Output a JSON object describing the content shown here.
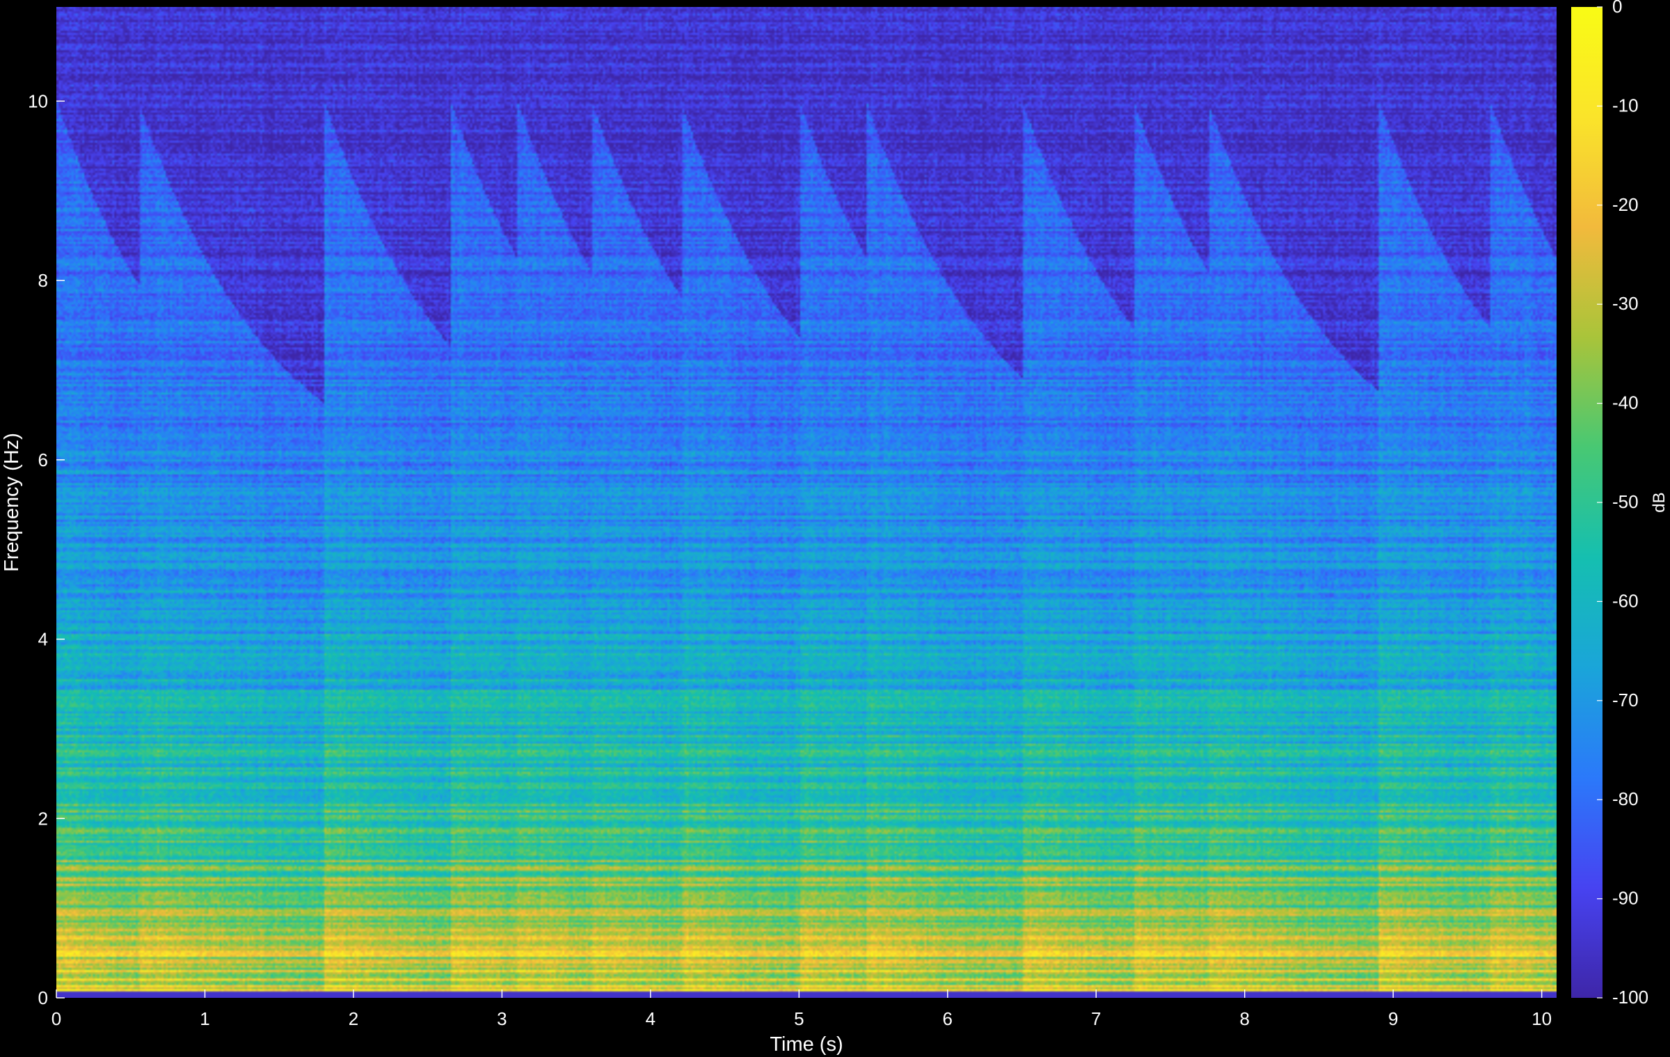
{
  "chart_data": {
    "type": "heatmap",
    "title": "",
    "xlabel": "Time (s)",
    "ylabel": "Frequency (Hz)",
    "xlim": [
      0,
      10.1
    ],
    "ylim": [
      0,
      11.05
    ],
    "xticks": [
      "0",
      "1",
      "2",
      "3",
      "4",
      "5",
      "6",
      "7",
      "8",
      "9",
      "10"
    ],
    "yticks": [
      "0",
      "2",
      "4",
      "6",
      "8",
      "10"
    ],
    "grid": false,
    "colorbar": {
      "label": "dB",
      "range": [
        -100,
        0
      ],
      "ticks": [
        "0",
        "-10",
        "-20",
        "-30",
        "-40",
        "-50",
        "-60",
        "-70",
        "-80",
        "-90",
        "-100"
      ],
      "colormap": [
        "#3e26a8",
        "#4743f1",
        "#2b79fa",
        "#1aa5d9",
        "#15bfb0",
        "#48c873",
        "#a9c43a",
        "#f2ba3c",
        "#fae42a",
        "#f9fb15"
      ]
    },
    "onsets_s": [
      0.55,
      1.8,
      2.65,
      3.1,
      3.6,
      4.2,
      5.0,
      5.45,
      6.5,
      7.25,
      7.75,
      8.9,
      9.65
    ],
    "background_color": "#000000",
    "plot_floor_color": "#3b2aa0"
  }
}
